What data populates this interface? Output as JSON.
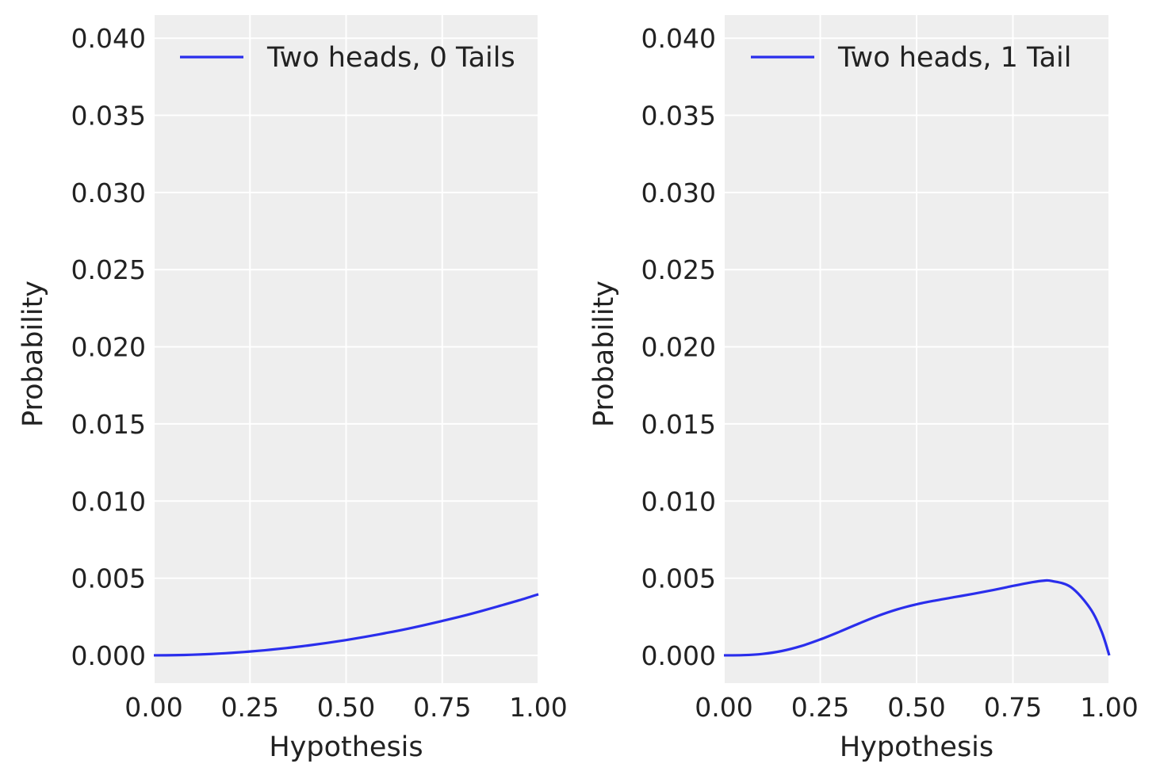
{
  "chart_data": [
    {
      "type": "line",
      "title": "",
      "xlabel": "Hypothesis",
      "ylabel": "Probability",
      "xlim": [
        0,
        1
      ],
      "ylim": [
        -0.0018,
        0.0415
      ],
      "xticks": [
        0,
        0.25,
        0.5,
        0.75,
        1
      ],
      "xtick_labels": [
        "0.00",
        "0.25",
        "0.50",
        "0.75",
        "1.00"
      ],
      "yticks": [
        0,
        0.005,
        0.01,
        0.015,
        0.02,
        0.025,
        0.03,
        0.035,
        0.04
      ],
      "ytick_labels": [
        "0.000",
        "0.005",
        "0.010",
        "0.015",
        "0.020",
        "0.025",
        "0.030",
        "0.035",
        "0.040"
      ],
      "grid": true,
      "legend": "top-right",
      "series": [
        {
          "name": "Two heads, 0 Tails",
          "color": "#2a2eec",
          "x": [
            0,
            0.05,
            0.1,
            0.15,
            0.2,
            0.25,
            0.3,
            0.35,
            0.4,
            0.45,
            0.5,
            0.55,
            0.6,
            0.65,
            0.7,
            0.75,
            0.8,
            0.85,
            0.9,
            0.95,
            1
          ],
          "y": [
            0,
            9.9e-06,
            3.96e-05,
            8.91e-05,
            0.000158,
            0.000248,
            0.000356,
            0.000485,
            0.000634,
            0.000802,
            0.00099,
            0.0012,
            0.00143,
            0.00167,
            0.00194,
            0.00223,
            0.00253,
            0.00286,
            0.00321,
            0.00357,
            0.00396
          ]
        }
      ]
    },
    {
      "type": "line",
      "title": "",
      "xlabel": "Hypothesis",
      "ylabel": "Probability",
      "xlim": [
        0,
        1
      ],
      "ylim": [
        -0.0018,
        0.0415
      ],
      "xticks": [
        0,
        0.25,
        0.5,
        0.75,
        1
      ],
      "xtick_labels": [
        "0.00",
        "0.25",
        "0.50",
        "0.75",
        "1.00"
      ],
      "yticks": [
        0,
        0.005,
        0.01,
        0.015,
        0.02,
        0.025,
        0.03,
        0.035,
        0.04
      ],
      "ytick_labels": [
        "0.000",
        "0.005",
        "0.010",
        "0.015",
        "0.020",
        "0.025",
        "0.030",
        "0.035",
        "0.040"
      ],
      "grid": true,
      "legend": "top-right",
      "series": [
        {
          "name": "Two heads, 1 Tail",
          "color": "#2a2eec",
          "x": [
            0,
            0.05,
            0.1,
            0.15,
            0.2,
            0.25,
            0.3,
            0.35,
            0.4,
            0.45,
            0.5,
            0.55,
            0.6,
            0.65,
            0.7,
            0.75,
            0.8,
            0.83,
            0.85,
            0.9,
            0.95,
            0.98,
            1
          ],
          "y": [
            0,
            1.27e-05,
            9.09e-05,
            0.00028,
            0.000597,
            0.00103,
            0.00153,
            0.00206,
            0.00256,
            0.00298,
            0.00331,
            0.00356,
            0.00378,
            0.004,
            0.00424,
            0.0045,
            0.00474,
            0.00484,
            0.00482,
            0.00443,
            0.00306,
            0.00155,
            0
          ]
        }
      ]
    }
  ]
}
